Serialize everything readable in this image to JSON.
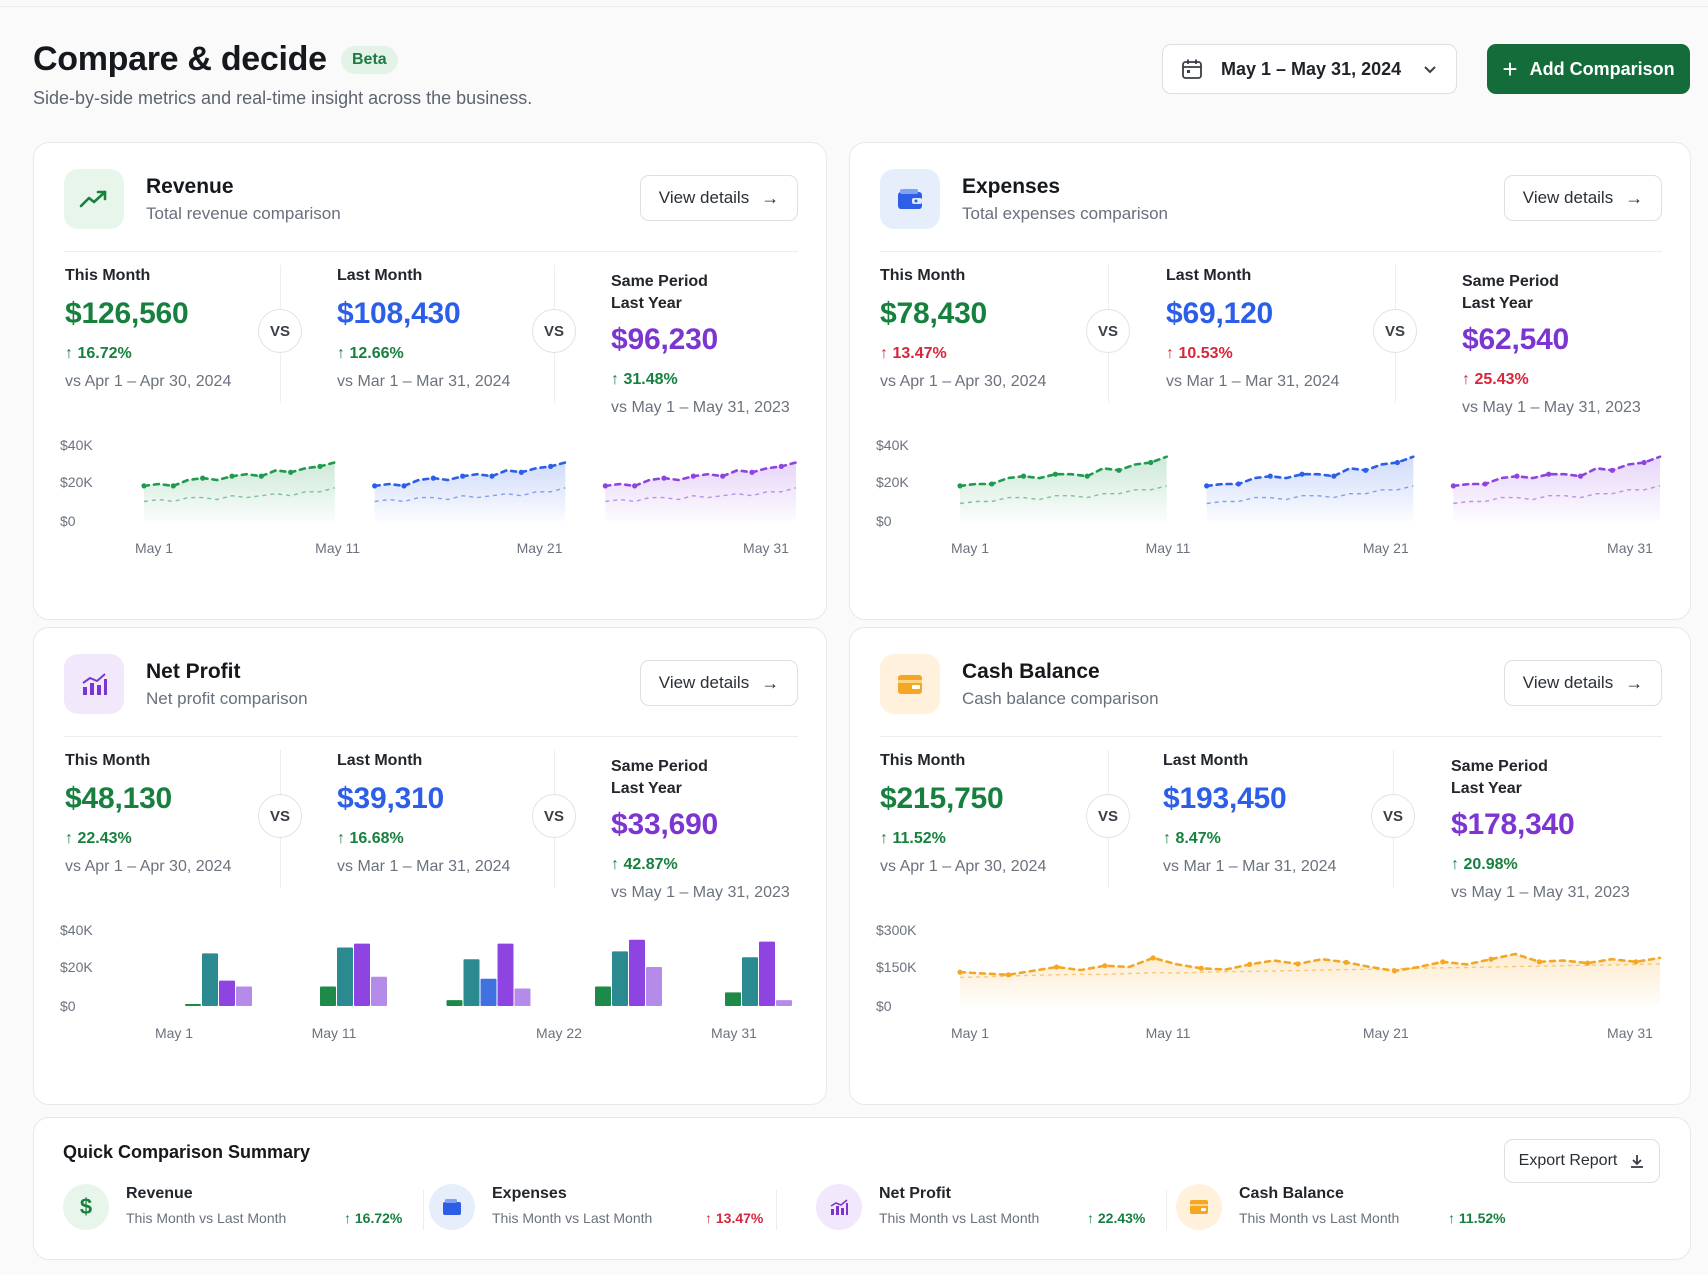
{
  "header": {
    "title": "Compare & decide",
    "badge": "Beta",
    "subtitle": "Side-by-side metrics and real-time insight across the business.",
    "date_range": "May 1 – May 31, 2024",
    "add_button": "Add Comparison"
  },
  "labels": {
    "this_month": "This Month",
    "last_month": "Last Month",
    "same_period_l1": "Same Period",
    "same_period_l2": "Last Year",
    "vs": "VS",
    "view_details": "View details",
    "range_this": "vs Apr 1 – Apr 30, 2024",
    "range_last": "vs Mar 1 – Mar 31, 2024",
    "range_year": "vs May 1 – May 31, 2023"
  },
  "cards": {
    "revenue": {
      "title": "Revenue",
      "subtitle": "Total revenue comparison",
      "this_value": "$126,560",
      "this_change": "16.72%",
      "last_value": "$108,430",
      "last_change": "12.66%",
      "year_value": "$96,230",
      "year_change": "31.48%"
    },
    "expenses": {
      "title": "Expenses",
      "subtitle": "Total expenses comparison",
      "this_value": "$78,430",
      "this_change": "13.47%",
      "last_value": "$69,120",
      "last_change": "10.53%",
      "year_value": "$62,540",
      "year_change": "25.43%"
    },
    "net_profit": {
      "title": "Net Profit",
      "subtitle": "Net profit comparison",
      "this_value": "$48,130",
      "this_change": "22.43%",
      "last_value": "$39,310",
      "last_change": "16.68%",
      "year_value": "$33,690",
      "year_change": "42.87%"
    },
    "cash_balance": {
      "title": "Cash Balance",
      "subtitle": "Cash balance comparison",
      "this_value": "$215,750",
      "this_change": "11.52%",
      "last_value": "$193,450",
      "last_change": "8.47%",
      "year_value": "$178,340",
      "year_change": "20.98%"
    }
  },
  "colors": {
    "green": "#17803f",
    "blue": "#2c5ee8",
    "purple": "#7d35d1",
    "red": "#d7263d",
    "orange": "#f5a623",
    "teal": "#2a8a8f"
  },
  "chart_data": [
    {
      "type": "line",
      "yticks": [
        "$40K",
        "$20K",
        "$0"
      ],
      "xticks": [
        "May 1",
        "May 11",
        "May 21",
        "May 31"
      ],
      "series": [
        {
          "values": [
            18,
            19,
            18,
            21,
            22,
            21,
            23,
            24,
            23,
            26,
            25,
            27,
            28,
            30
          ]
        },
        {
          "values": [
            10,
            11,
            10,
            12,
            12,
            11,
            13,
            12,
            13,
            14,
            13,
            15,
            15,
            17
          ]
        }
      ]
    },
    {
      "type": "line",
      "yticks": [
        "$40K",
        "$20K",
        "$0"
      ],
      "xticks": [
        "May 1",
        "May 11",
        "May 21",
        "May 31"
      ],
      "series": [
        {
          "values": [
            18,
            19,
            19,
            22,
            23,
            22,
            24,
            24,
            23,
            27,
            26,
            29,
            30,
            33
          ]
        },
        {
          "values": [
            9,
            10,
            10,
            12,
            12,
            11,
            13,
            13,
            12,
            14,
            14,
            16,
            16,
            18
          ]
        }
      ]
    },
    {
      "type": "bar",
      "yticks": [
        "$40K",
        "$20K",
        "$0"
      ],
      "xticks": [
        "May 1",
        "May 11",
        "May 22",
        "May 31"
      ],
      "groups": [
        [
          1,
          27,
          13,
          10
        ],
        [
          10,
          30,
          32,
          15
        ],
        [
          3,
          24,
          14,
          32,
          9
        ],
        [
          10,
          28,
          34,
          20
        ],
        [
          7,
          25,
          33,
          3
        ]
      ]
    },
    {
      "type": "line",
      "yticks": [
        "$300K",
        "$150K",
        "$0"
      ],
      "xticks": [
        "May 1",
        "May 11",
        "May 21",
        "May 31"
      ],
      "series": [
        {
          "values": [
            130,
            125,
            120,
            135,
            150,
            138,
            155,
            150,
            185,
            160,
            145,
            140,
            160,
            175,
            162,
            180,
            168,
            150,
            135,
            150,
            170,
            160,
            180,
            200,
            170,
            175,
            165,
            180,
            170,
            185
          ]
        },
        {
          "values": [
            110,
            112,
            115,
            118,
            120,
            122,
            121,
            125,
            128,
            127,
            130,
            132,
            133,
            135,
            136,
            138,
            140,
            141,
            143,
            145,
            147,
            148,
            150,
            152,
            153,
            155,
            157,
            158,
            160,
            162
          ]
        }
      ]
    }
  ],
  "summary": {
    "title": "Quick Comparison Summary",
    "export": "Export Report",
    "items": [
      {
        "name": "Revenue",
        "compare": "This Month vs Last Month",
        "pct": "16.72%"
      },
      {
        "name": "Expenses",
        "compare": "This Month vs Last Month",
        "pct": "13.47%"
      },
      {
        "name": "Net Profit",
        "compare": "This Month vs Last Month",
        "pct": "22.43%"
      },
      {
        "name": "Cash Balance",
        "compare": "This Month vs Last Month",
        "pct": "11.52%"
      }
    ]
  }
}
